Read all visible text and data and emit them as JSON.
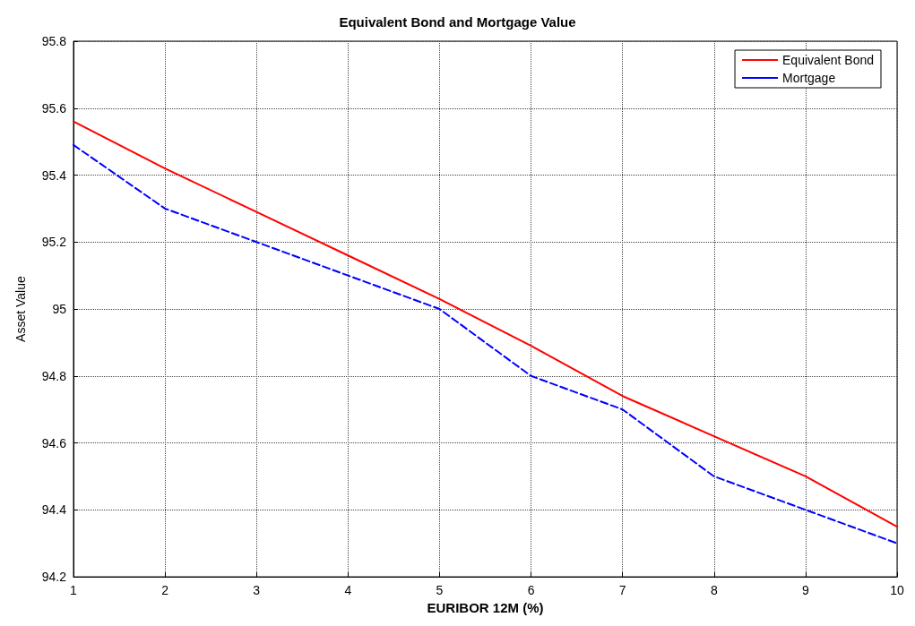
{
  "chart_data": {
    "type": "line",
    "title": "Equivalent Bond and Mortgage Value",
    "xlabel": "EURIBOR 12M (%)",
    "ylabel": "Asset Value",
    "x": [
      1,
      2,
      3,
      4,
      5,
      6,
      7,
      8,
      9,
      10
    ],
    "series": [
      {
        "name": "Equivalent Bond",
        "color": "#ff0000",
        "line_style": "solid",
        "values": [
          95.56,
          95.42,
          95.29,
          95.16,
          95.03,
          94.89,
          94.74,
          94.62,
          94.5,
          94.35
        ]
      },
      {
        "name": "Mortgage",
        "color": "#0000ff",
        "line_style": "dashed",
        "values": [
          95.49,
          95.3,
          95.2,
          95.1,
          95.0,
          94.8,
          94.7,
          94.5,
          94.4,
          94.3
        ]
      }
    ],
    "xlim": [
      1,
      10
    ],
    "xticks": [
      1,
      2,
      3,
      4,
      5,
      6,
      7,
      8,
      9,
      10
    ],
    "ylim": [
      94.2,
      95.8
    ],
    "yticks": [
      94.2,
      94.4,
      94.6,
      94.8,
      95,
      95.2,
      95.4,
      95.6,
      95.8
    ],
    "grid": true,
    "legend": "top right",
    "marker": "none"
  }
}
